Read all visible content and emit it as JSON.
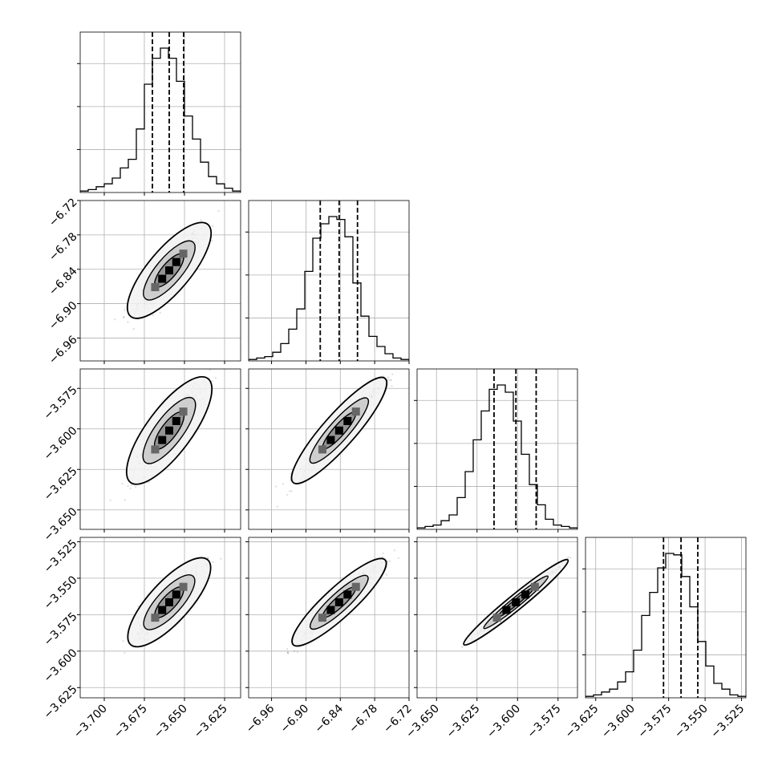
{
  "chart_data": {
    "type": "corner",
    "parameters": [
      {
        "range": [
          -3.715,
          -3.615
        ],
        "ticks": [
          -3.7,
          -3.675,
          -3.65,
          -3.625
        ],
        "tick_labels": [
          "−3.700",
          "−3.675",
          "−3.650",
          "−3.625"
        ]
      },
      {
        "range": [
          -7.0,
          -6.72
        ],
        "ticks": [
          -6.96,
          -6.9,
          -6.84,
          -6.78,
          -6.72
        ],
        "tick_labels": [
          "−6.96",
          "−6.90",
          "−6.84",
          "−6.78",
          "−6.72"
        ]
      },
      {
        "range": [
          -3.662,
          -3.563
        ],
        "ticks": [
          -3.65,
          -3.625,
          -3.6,
          -3.575
        ],
        "tick_labels": [
          "−3.650",
          "−3.625",
          "−3.600",
          "−3.575"
        ]
      },
      {
        "range": [
          -3.632,
          -3.522
        ],
        "ticks": [
          -3.625,
          -3.6,
          -3.575,
          -3.55,
          -3.525
        ],
        "tick_labels": [
          "−3.625",
          "−3.600",
          "−3.575",
          "−3.550",
          "−3.525"
        ]
      }
    ],
    "quantiles": [
      [
        -3.67,
        -3.6595,
        -3.6505
      ],
      [
        -6.875,
        -6.842,
        -6.81
      ],
      [
        -3.6145,
        -3.601,
        -3.5885
      ],
      [
        -3.5785,
        -3.5665,
        -3.555
      ]
    ],
    "histograms": [
      [
        0.01,
        0.02,
        0.04,
        0.06,
        0.1,
        0.17,
        0.23,
        0.44,
        0.75,
        0.93,
        1.0,
        0.93,
        0.77,
        0.53,
        0.37,
        0.21,
        0.11,
        0.06,
        0.03,
        0.01
      ],
      [
        0.01,
        0.02,
        0.03,
        0.06,
        0.12,
        0.22,
        0.36,
        0.62,
        0.85,
        0.95,
        1.0,
        0.98,
        0.86,
        0.54,
        0.31,
        0.17,
        0.1,
        0.05,
        0.02,
        0.01
      ],
      [
        0.01,
        0.02,
        0.03,
        0.06,
        0.1,
        0.22,
        0.4,
        0.62,
        0.82,
        0.97,
        1.0,
        0.95,
        0.75,
        0.52,
        0.31,
        0.17,
        0.07,
        0.03,
        0.02,
        0.01
      ],
      [
        0.01,
        0.02,
        0.04,
        0.06,
        0.11,
        0.18,
        0.33,
        0.57,
        0.73,
        0.9,
        1.0,
        0.99,
        0.84,
        0.63,
        0.39,
        0.22,
        0.1,
        0.06,
        0.02,
        0.01
      ]
    ],
    "grid": true
  }
}
